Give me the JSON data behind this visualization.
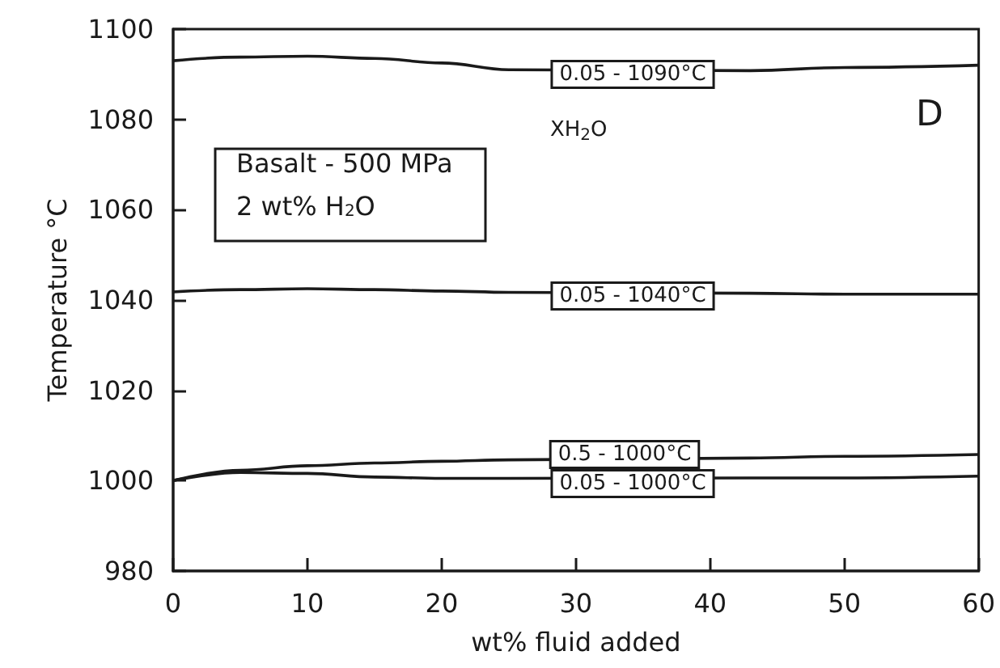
{
  "chart_data": {
    "type": "line",
    "xlabel": "wt% fluid added",
    "ylabel": "Temperature °C",
    "x": [
      0,
      5,
      10,
      15,
      20,
      25,
      43,
      50,
      60
    ],
    "series": [
      {
        "color": "#1a1a1a",
        "values": [
          1093,
          1093.8,
          1094,
          1093.5,
          1092.5,
          1091,
          1090.8,
          1091.5,
          1092
        ]
      },
      {
        "color": "#1a1a1a",
        "values": [
          1041.8,
          1042.3,
          1042.5,
          1042.3,
          1042,
          1041.7,
          1041.5,
          1041.3,
          1041.3
        ]
      },
      {
        "color": "#1a1a1a",
        "values": [
          1000,
          1002.3,
          1003.3,
          1003.9,
          1004.3,
          1004.6,
          1005,
          1005.4,
          1005.8
        ]
      },
      {
        "color": "#1a1a1a",
        "values": [
          1000,
          1001.8,
          1001.6,
          1000.8,
          1000.5,
          1000.5,
          1000.6,
          1000.6,
          1001
        ]
      }
    ],
    "annotations": [
      "0.05 - 1090°C",
      "0.05 - 1040°C",
      "0.5 - 1000°C",
      "0.05 - 1000°C",
      "XH$_{2}$O",
      "D",
      "Basalt - 500 MPa",
      "2 wt% H$_{2}$O"
    ],
    "xlim": [
      0,
      60
    ],
    "xticks": [
      0,
      10,
      20,
      30,
      40,
      50,
      60
    ],
    "ylim": [
      980,
      1100
    ],
    "yticks": [
      980,
      1000,
      1020,
      1040,
      1060,
      1080,
      1100
    ],
    "grid": false,
    "marker": "none",
    "line_style": "solid"
  }
}
